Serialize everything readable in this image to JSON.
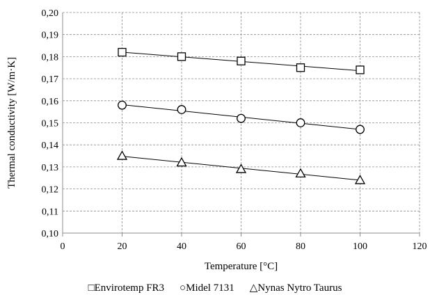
{
  "chart_data": {
    "type": "scatter",
    "title": "",
    "xlabel": "Temperature [°C]",
    "ylabel": "Thermal conductivity [W/m·K]",
    "xlim": [
      0,
      120
    ],
    "ylim": [
      0.1,
      0.2
    ],
    "x_ticks": [
      "0",
      "20",
      "40",
      "60",
      "80",
      "100",
      "120"
    ],
    "y_ticks": [
      "0,10",
      "0,11",
      "0,12",
      "0,13",
      "0,14",
      "0,15",
      "0,16",
      "0,17",
      "0,18",
      "0,19",
      "0,20"
    ],
    "grid": "dashed",
    "legend_position": "bottom",
    "trendlines": true,
    "series": [
      {
        "name": "Envirotemp FR3",
        "marker": "square",
        "legend_symbol": "□",
        "x": [
          20,
          40,
          60,
          80,
          100
        ],
        "y": [
          0.182,
          0.18,
          0.178,
          0.175,
          0.174
        ]
      },
      {
        "name": "Midel 7131",
        "marker": "circle",
        "legend_symbol": "○",
        "x": [
          20,
          40,
          60,
          80,
          100
        ],
        "y": [
          0.158,
          0.156,
          0.152,
          0.15,
          0.147
        ]
      },
      {
        "name": "Nynas Nytro Taurus",
        "marker": "triangle",
        "legend_symbol": "△",
        "x": [
          20,
          40,
          60,
          80,
          100
        ],
        "y": [
          0.135,
          0.132,
          0.129,
          0.127,
          0.124
        ]
      }
    ]
  }
}
